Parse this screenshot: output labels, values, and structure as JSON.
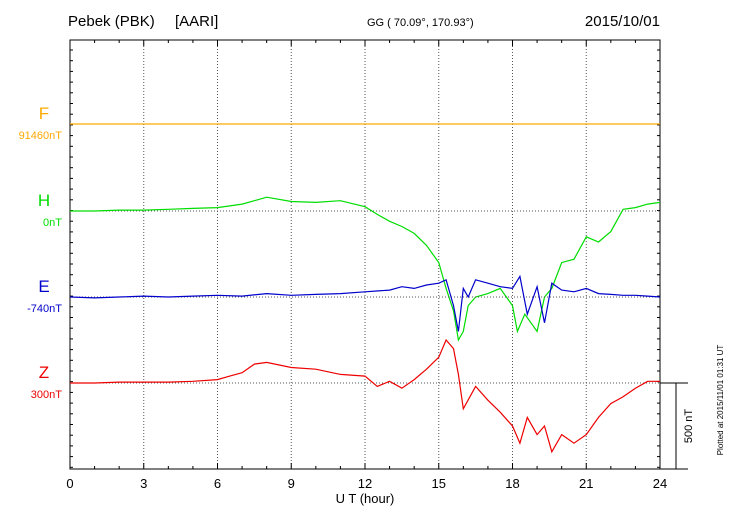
{
  "header": {
    "station": "Pebek (PBK)",
    "institute": "[AARI]",
    "coords": "GG ( 70.09°, 170.93°)",
    "date": "2015/10/01"
  },
  "plotted_note": "Plotted at 2015/11/01 01:31  UT",
  "chart_data": {
    "type": "line",
    "xlabel": "U T (hour)",
    "xlim": [
      0,
      24
    ],
    "xticks": [
      "0",
      "3",
      "6",
      "9",
      "12",
      "15",
      "18",
      "21",
      "24"
    ],
    "scale_bar": {
      "label": "500 nT",
      "value_nT": 500
    },
    "series": [
      {
        "name": "F",
        "baseline_label": "91460nT",
        "color": "#ffaa00",
        "x": [
          0,
          24
        ],
        "y": [
          0,
          0
        ]
      },
      {
        "name": "H",
        "baseline_label": "0nT",
        "color": "#00dd00",
        "x": [
          0,
          1,
          2,
          3,
          4,
          5,
          6,
          7,
          7.5,
          8,
          9,
          10,
          11,
          12,
          12.5,
          13,
          13.5,
          14,
          14.5,
          15,
          15.3,
          15.6,
          15.8,
          16,
          16.2,
          16.5,
          17,
          17.5,
          18,
          18.2,
          18.5,
          19,
          19.3,
          19.6,
          20,
          20.5,
          21,
          21.5,
          22,
          22.5,
          23,
          23.5,
          24
        ],
        "y": [
          0,
          0,
          5,
          5,
          10,
          15,
          20,
          40,
          60,
          80,
          55,
          50,
          60,
          25,
          -20,
          -60,
          -90,
          -130,
          -200,
          -300,
          -450,
          -580,
          -750,
          -700,
          -550,
          -500,
          -480,
          -450,
          -550,
          -700,
          -600,
          -700,
          -500,
          -450,
          -300,
          -280,
          -150,
          -180,
          -120,
          10,
          20,
          40,
          50
        ]
      },
      {
        "name": "E",
        "baseline_label": "-740nT",
        "color": "#0000cc",
        "x": [
          0,
          1,
          2,
          3,
          4,
          5,
          6,
          7,
          8,
          9,
          10,
          11,
          12,
          13,
          13.5,
          14,
          14.5,
          15,
          15.3,
          15.6,
          15.8,
          16,
          16.2,
          16.5,
          17,
          17.5,
          18,
          18.3,
          18.6,
          19,
          19.3,
          19.6,
          20,
          20.5,
          21,
          21.5,
          22,
          22.5,
          23,
          23.5,
          24
        ],
        "y": [
          0,
          -5,
          0,
          5,
          0,
          5,
          10,
          5,
          20,
          10,
          15,
          20,
          30,
          40,
          60,
          50,
          70,
          80,
          100,
          -50,
          -200,
          50,
          0,
          100,
          80,
          60,
          50,
          120,
          -100,
          60,
          -150,
          80,
          40,
          30,
          50,
          20,
          15,
          10,
          10,
          5,
          0
        ]
      },
      {
        "name": "Z",
        "baseline_label": "300nT",
        "color": "#ee0000",
        "x": [
          0,
          1,
          2,
          3,
          4,
          5,
          6,
          6.5,
          7,
          7.5,
          8,
          9,
          10,
          11,
          12,
          12.5,
          13,
          13.5,
          14,
          14.5,
          15,
          15.3,
          15.6,
          15.8,
          16,
          16.5,
          17,
          17.5,
          18,
          18.3,
          18.6,
          19,
          19.3,
          19.6,
          20,
          20.5,
          21,
          21.5,
          22,
          22.5,
          23,
          23.5,
          24
        ],
        "y": [
          0,
          0,
          5,
          5,
          5,
          10,
          20,
          40,
          60,
          110,
          120,
          90,
          80,
          50,
          40,
          -20,
          10,
          -30,
          20,
          80,
          150,
          250,
          200,
          50,
          -150,
          -20,
          -100,
          -170,
          -250,
          -350,
          -200,
          -300,
          -250,
          -400,
          -300,
          -350,
          -300,
          -200,
          -120,
          -80,
          -30,
          10,
          10
        ]
      }
    ]
  }
}
